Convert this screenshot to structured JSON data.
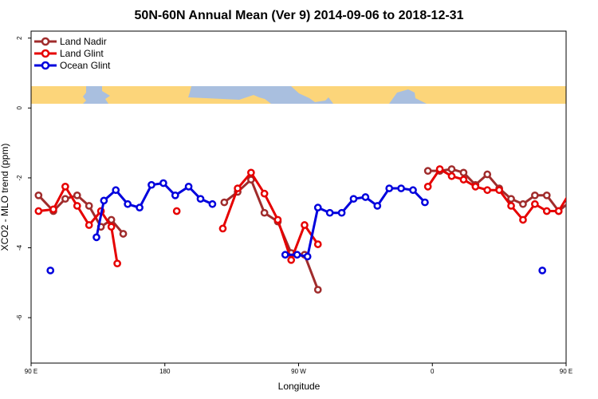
{
  "chart_data": {
    "type": "line",
    "title": "50N-60N Annual Mean (Ver 9)   2014-09-06 to 2018-12-31",
    "xlabel": "Longitude",
    "ylabel": "XCO2 - MLO trend (ppm)",
    "xlim": [
      90,
      450
    ],
    "ylim": [
      -7.3,
      2.2
    ],
    "x_ticks": [
      {
        "value": 90,
        "label": "90 E"
      },
      {
        "value": 180,
        "label": "180"
      },
      {
        "value": 270,
        "label": "90 W"
      },
      {
        "value": 360,
        "label": "0"
      },
      {
        "value": 450,
        "label": "90 E"
      },
      {
        "value": 540,
        "label": "180"
      }
    ],
    "y_ticks": [
      {
        "value": 2,
        "label": "2"
      },
      {
        "value": 0,
        "label": "0"
      },
      {
        "value": -2,
        "label": "-2"
      },
      {
        "value": -4,
        "label": "-4"
      },
      {
        "value": -6,
        "label": "-6"
      }
    ],
    "legend_position": "top-left",
    "map_strip": {
      "y_top": 0.55,
      "y_bottom": 0.0,
      "ocean_color": "#a9bfdf",
      "land_color": "#fcd57a"
    },
    "series": [
      {
        "name": "Land Nadir",
        "color": "#a02c2c",
        "points": [
          [
            95,
            -2.5
          ],
          [
            105,
            -2.95
          ],
          [
            113,
            -2.6
          ],
          [
            121,
            -2.5
          ],
          [
            129,
            -2.8
          ],
          [
            137,
            -3.4
          ],
          [
            144,
            -3.2
          ],
          [
            152,
            -3.6
          ],
          null,
          [
            220,
            -2.7
          ],
          [
            229,
            -2.4
          ],
          [
            238,
            -2.05
          ],
          [
            247,
            -3.0
          ],
          [
            256,
            -3.25
          ],
          [
            265,
            -4.15
          ],
          [
            274,
            -4.2
          ],
          [
            283,
            -5.2
          ],
          null,
          [
            357,
            -1.8
          ],
          [
            365,
            -1.8
          ],
          [
            373,
            -1.75
          ],
          [
            381,
            -1.85
          ],
          [
            389,
            -2.2
          ],
          [
            397,
            -1.9
          ],
          [
            405,
            -2.3
          ],
          [
            413,
            -2.6
          ],
          [
            421,
            -2.75
          ],
          [
            429,
            -2.5
          ],
          [
            437,
            -2.5
          ],
          [
            445,
            -2.95
          ],
          [
            455,
            -2.6
          ],
          [
            465,
            -2.5
          ],
          [
            473,
            -2.8
          ],
          [
            481,
            -3.4
          ],
          [
            489,
            -3.2
          ],
          [
            497,
            -3.6
          ]
        ]
      },
      {
        "name": "Land Glint",
        "color": "#e60000",
        "points": [
          [
            95,
            -2.95
          ],
          [
            105,
            -2.9
          ],
          [
            113,
            -2.25
          ],
          [
            121,
            -2.8
          ],
          [
            129,
            -3.35
          ],
          [
            137,
            -2.95
          ],
          [
            144,
            -3.4
          ],
          [
            148,
            -4.45
          ],
          null,
          [
            188,
            -2.95
          ],
          null,
          [
            219,
            -3.45
          ],
          [
            229,
            -2.3
          ],
          [
            238,
            -1.85
          ],
          [
            247,
            -2.45
          ],
          [
            256,
            -3.2
          ],
          [
            265,
            -4.35
          ],
          [
            274,
            -3.35
          ],
          [
            283,
            -3.9
          ],
          null,
          [
            357,
            -2.25
          ],
          [
            365,
            -1.75
          ],
          [
            373,
            -1.95
          ],
          [
            381,
            -2.05
          ],
          [
            389,
            -2.25
          ],
          [
            397,
            -2.35
          ],
          [
            405,
            -2.35
          ],
          [
            413,
            -2.8
          ],
          [
            421,
            -3.2
          ],
          [
            429,
            -2.75
          ],
          [
            437,
            -2.95
          ],
          [
            445,
            -2.95
          ],
          [
            455,
            -2.25
          ],
          [
            465,
            -2.8
          ],
          [
            473,
            -3.35
          ],
          [
            481,
            -2.95
          ],
          [
            489,
            -3.4
          ],
          [
            493,
            -4.45
          ]
        ]
      },
      {
        "name": "Ocean Glint",
        "color": "#0000dd",
        "points": [
          [
            103,
            -4.65
          ],
          null,
          [
            134,
            -3.7
          ],
          [
            139,
            -2.65
          ],
          [
            147,
            -2.35
          ],
          [
            155,
            -2.75
          ],
          [
            163,
            -2.85
          ],
          [
            171,
            -2.2
          ],
          [
            179,
            -2.15
          ],
          [
            187,
            -2.5
          ],
          [
            196,
            -2.25
          ],
          [
            204,
            -2.6
          ],
          [
            212,
            -2.75
          ],
          null,
          [
            261,
            -4.2
          ],
          [
            269,
            -4.2
          ],
          [
            276,
            -4.25
          ],
          [
            283,
            -2.85
          ],
          [
            291,
            -3.0
          ],
          [
            299,
            -3.0
          ],
          [
            307,
            -2.6
          ],
          [
            315,
            -2.55
          ],
          [
            323,
            -2.8
          ],
          [
            331,
            -2.3
          ],
          [
            339,
            -2.3
          ],
          [
            347,
            -2.35
          ],
          [
            355,
            -2.7
          ],
          null,
          [
            434,
            -4.65
          ],
          null,
          [
            479,
            -3.7
          ],
          [
            484,
            -2.65
          ],
          [
            492,
            -2.35
          ],
          [
            500,
            -2.75
          ],
          [
            508,
            -2.85
          ]
        ]
      }
    ]
  }
}
